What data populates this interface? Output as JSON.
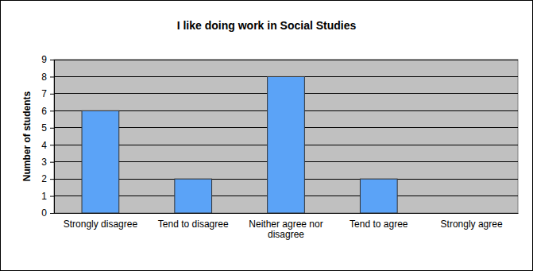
{
  "chart_data": {
    "type": "bar",
    "title": "I like doing work in Social Studies",
    "y_label": "Number of students",
    "categories": [
      "Strongly disagree",
      "Tend to disagree",
      "Neither agree nor disagree",
      "Tend to agree",
      "Strongly agree"
    ],
    "values": [
      6,
      2,
      8,
      2,
      0
    ],
    "color": "#5ba3f7",
    "ylim": [
      0,
      9
    ],
    "yticks": [
      0,
      1,
      2,
      3,
      4,
      5,
      6,
      7,
      8,
      9
    ],
    "grid": true
  }
}
